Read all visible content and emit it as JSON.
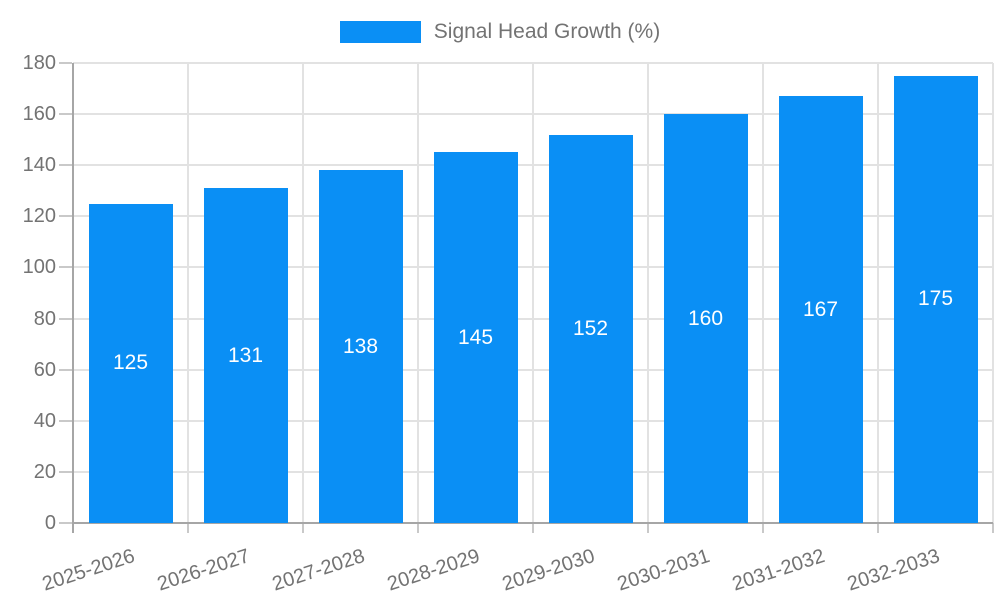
{
  "chart_data": {
    "type": "bar",
    "title": "",
    "xlabel": "",
    "ylabel": "",
    "legend_position": "top-center",
    "grid": true,
    "categories": [
      "2025-2026",
      "2026-2027",
      "2027-2028",
      "2028-2029",
      "2029-2030",
      "2030-2031",
      "2031-2032",
      "2032-2033"
    ],
    "series": [
      {
        "name": "Signal Head Growth (%)",
        "values": [
          125,
          131,
          138,
          145,
          152,
          160,
          167,
          175
        ],
        "color": "#0a8ff5"
      }
    ],
    "value_labels_shown": true,
    "value_label_color": "#ffffff",
    "ylim": [
      0,
      180
    ],
    "yticks": [
      0,
      20,
      40,
      60,
      80,
      100,
      120,
      140,
      160,
      180
    ],
    "x_tick_rotation_deg": -18,
    "colors": {
      "bar": "#0a8ff5",
      "grid": "#e2e2e2",
      "axis": "#a6a6a6",
      "tick": "#c9c9c9",
      "text": "#737373",
      "background": "#ffffff"
    }
  }
}
